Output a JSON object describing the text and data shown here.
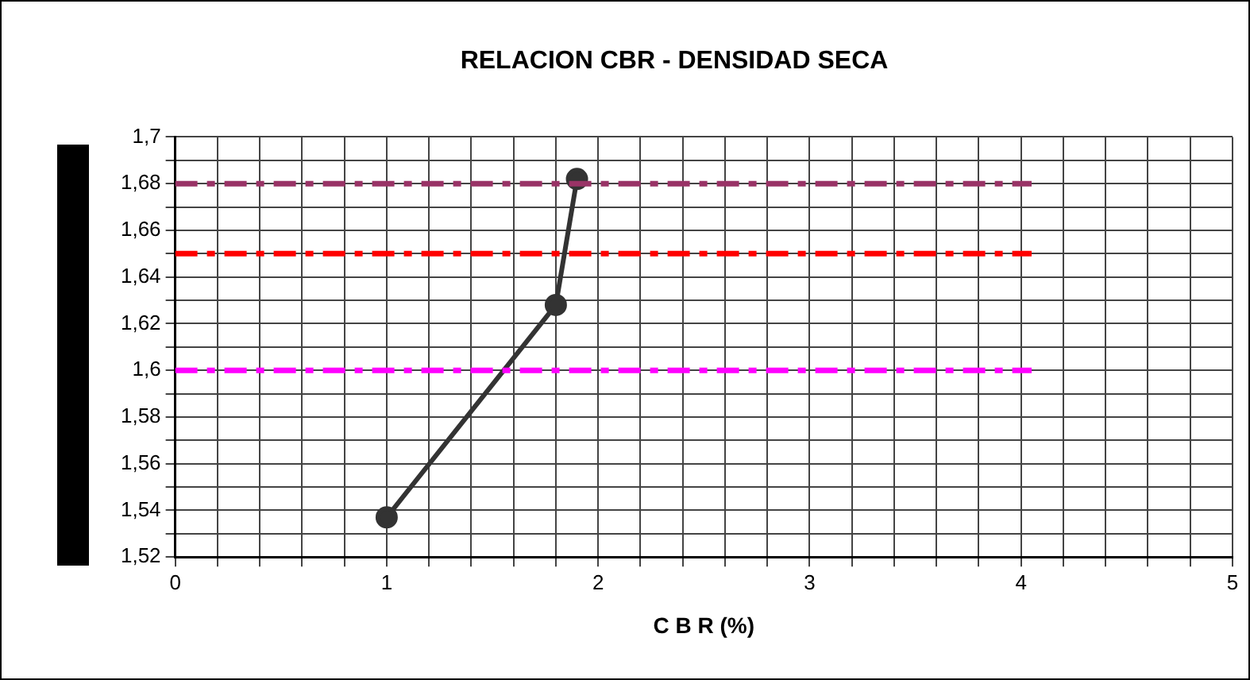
{
  "chart_data": {
    "type": "line",
    "title": "RELACION CBR - DENSIDAD SECA",
    "xlabel": "C B R (%)",
    "xlim": [
      0,
      5
    ],
    "xticks": [
      0,
      {
        "value": 0.2,
        "label": null
      },
      {
        "value": 0.4,
        "label": null
      },
      {
        "value": 0.6,
        "label": null
      },
      {
        "value": 0.8,
        "label": null
      },
      1,
      {
        "value": 1.2,
        "label": null
      },
      {
        "value": 1.4,
        "label": null
      },
      {
        "value": 1.6,
        "label": null
      },
      {
        "value": 1.8,
        "label": null
      },
      2,
      {
        "value": 2.2,
        "label": null
      },
      {
        "value": 2.4,
        "label": null
      },
      {
        "value": 2.6,
        "label": null
      },
      {
        "value": 2.8,
        "label": null
      },
      3,
      {
        "value": 3.2,
        "label": null
      },
      {
        "value": 3.4,
        "label": null
      },
      {
        "value": 3.6,
        "label": null
      },
      {
        "value": 3.8,
        "label": null
      },
      4,
      {
        "value": 4.2,
        "label": null
      },
      {
        "value": 4.4,
        "label": null
      },
      {
        "value": 4.6,
        "label": null
      },
      {
        "value": 4.8,
        "label": null
      },
      5
    ],
    "ylim": [
      1.52,
      1.7
    ],
    "yticks": [
      {
        "value": 1.52,
        "label": "1,52"
      },
      {
        "value": 1.53,
        "label": null
      },
      {
        "value": 1.54,
        "label": "1,54"
      },
      {
        "value": 1.55,
        "label": null
      },
      {
        "value": 1.56,
        "label": "1,56"
      },
      {
        "value": 1.57,
        "label": null
      },
      {
        "value": 1.58,
        "label": "1,58"
      },
      {
        "value": 1.59,
        "label": null
      },
      {
        "value": 1.6,
        "label": "1,6"
      },
      {
        "value": 1.61,
        "label": null
      },
      {
        "value": 1.62,
        "label": "1,62"
      },
      {
        "value": 1.63,
        "label": null
      },
      {
        "value": 1.64,
        "label": "1,64"
      },
      {
        "value": 1.65,
        "label": null
      },
      {
        "value": 1.66,
        "label": "1,66"
      },
      {
        "value": 1.67,
        "label": null
      },
      {
        "value": 1.68,
        "label": "1,68"
      },
      {
        "value": 1.69,
        "label": null
      },
      {
        "value": 1.7,
        "label": "1,7"
      }
    ],
    "grid": true,
    "legend": false,
    "series": [
      {
        "color": "#993366",
        "x": [
          0,
          4.05
        ],
        "values": [
          1.68,
          1.68
        ],
        "line_style": "dashed",
        "marker": "none"
      },
      {
        "color": "#ff0000",
        "x": [
          0,
          4.05
        ],
        "values": [
          1.65,
          1.65
        ],
        "line_style": "dashed",
        "marker": "none"
      },
      {
        "color": "#ff00ff",
        "x": [
          0,
          4.05
        ],
        "values": [
          1.6,
          1.6
        ],
        "line_style": "dashed",
        "marker": "none"
      },
      {
        "color": "#333333",
        "x": [
          1,
          1.8,
          1.9
        ],
        "values": [
          1.537,
          1.628,
          1.682
        ],
        "line_style": "solid",
        "marker": "circle"
      }
    ]
  }
}
